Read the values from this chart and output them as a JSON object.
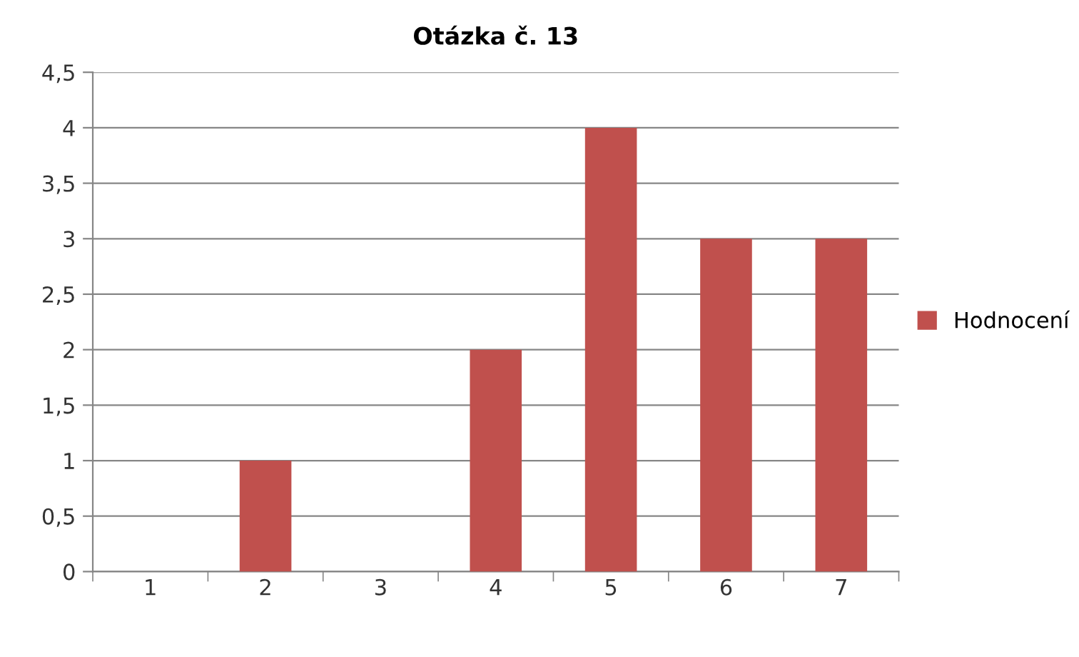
{
  "chart_data": {
    "type": "bar",
    "title": "Otázka č. 13",
    "categories": [
      "1",
      "2",
      "3",
      "4",
      "5",
      "6",
      "7"
    ],
    "series": [
      {
        "name": "Hodnocení",
        "color": "#c0504d",
        "values": [
          0,
          1,
          0,
          2,
          4,
          3,
          3
        ]
      }
    ],
    "ylim": [
      0,
      4.5
    ],
    "yticks": [
      0,
      {
        "value": 0.5,
        "label": "0,5"
      },
      1,
      {
        "value": 1.5,
        "label": "1,5"
      },
      2,
      {
        "value": 2.5,
        "label": "2,5"
      },
      3,
      {
        "value": 3.5,
        "label": "3,5"
      },
      4,
      {
        "value": 4.5,
        "label": "4,5"
      }
    ],
    "grid": "y",
    "legend": "right"
  }
}
